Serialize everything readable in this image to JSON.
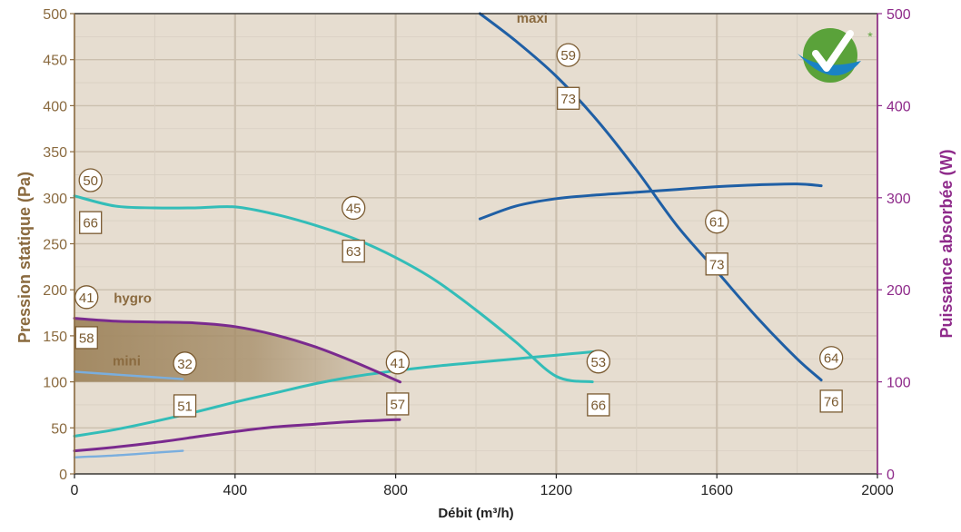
{
  "chart_data": {
    "type": "line",
    "xlabel": "Débit (m³/h)",
    "ylabel_left": "Pression statique (Pa)",
    "ylabel_right": "Puissance absorbée (W)",
    "xlim": [
      0,
      2000
    ],
    "ylim_left": [
      0,
      500
    ],
    "ylim_right": [
      0,
      500
    ],
    "x_ticks": [
      "0",
      "400",
      "800",
      "1200",
      "1600",
      "2000"
    ],
    "y_ticks_left": [
      "0",
      "50",
      "100",
      "150",
      "200",
      "250",
      "300",
      "350",
      "400",
      "450",
      "500"
    ],
    "y_ticks_right": [
      "0",
      "100",
      "200",
      "300",
      "400",
      "500"
    ],
    "grid": true,
    "colors": {
      "background": "#e6ddd0",
      "grid_major": "#cbbfae",
      "grid_minor": "#d8cfc2",
      "maxi": "#1f5fa5",
      "teal": "#33bdb8",
      "hygro": "#7a2a8e",
      "mini": "#7aaede",
      "area_fill": "#a38a64",
      "left_axis": "#8a6a3f",
      "right_axis": "#8e2a8a",
      "badge_green": "#5aa23a",
      "badge_blue": "#1a83c4"
    },
    "series": [
      {
        "name": "maxi",
        "axis": "left",
        "color": "#1f5fa5",
        "x": [
          1010,
          1100,
          1200,
          1300,
          1400,
          1500,
          1600,
          1700,
          1800,
          1860
        ],
        "y": [
          500,
          470,
          432,
          385,
          330,
          270,
          220,
          170,
          125,
          102
        ]
      },
      {
        "axis": "right",
        "color": "#1f5fa5",
        "x": [
          1010,
          1100,
          1200,
          1300,
          1400,
          1500,
          1600,
          1700,
          1800,
          1860
        ],
        "y": [
          277,
          291,
          299,
          303,
          306,
          309,
          312,
          314,
          315,
          313
        ]
      },
      {
        "axis": "left",
        "color": "#33bdb8",
        "x": [
          0,
          100,
          200,
          300,
          400,
          500,
          600,
          700,
          800,
          900,
          1000,
          1100,
          1200,
          1290
        ],
        "y": [
          302,
          291,
          289,
          289,
          290,
          282,
          270,
          255,
          235,
          210,
          178,
          143,
          106,
          100
        ]
      },
      {
        "axis": "right",
        "color": "#33bdb8",
        "x": [
          0,
          100,
          200,
          300,
          400,
          500,
          600,
          700,
          800,
          900,
          1000,
          1100,
          1200,
          1300
        ],
        "y": [
          41,
          48,
          57,
          67,
          78,
          88,
          98,
          106,
          112,
          117,
          121,
          125,
          129,
          133
        ]
      },
      {
        "name": "hygro",
        "axis": "left",
        "color": "#7a2a8e",
        "x": [
          0,
          100,
          200,
          300,
          400,
          500,
          600,
          700,
          800,
          810
        ],
        "y": [
          169,
          166,
          165,
          164,
          160,
          151,
          138,
          121,
          102,
          100
        ]
      },
      {
        "axis": "right",
        "color": "#7a2a8e",
        "x": [
          0,
          100,
          200,
          300,
          400,
          500,
          600,
          700,
          810
        ],
        "y": [
          25,
          29,
          34,
          40,
          46,
          51,
          54,
          57,
          59
        ]
      },
      {
        "name": "mini",
        "axis": "left",
        "color": "#7aaede",
        "x": [
          0,
          100,
          200,
          270
        ],
        "y": [
          111,
          108,
          105,
          103
        ]
      },
      {
        "axis": "right",
        "color": "#7aaede",
        "x": [
          0,
          100,
          200,
          270
        ],
        "y": [
          18,
          20,
          23,
          25
        ]
      }
    ],
    "curve_labels": [
      {
        "text": "maxi",
        "x": 1140,
        "y": 490
      },
      {
        "text": "hygro",
        "x": 145,
        "y": 186
      },
      {
        "text": "mini",
        "x": 130,
        "y": 118
      }
    ],
    "annotations": [
      {
        "shape": "circle",
        "text": "59",
        "x": 1230,
        "y": 455
      },
      {
        "shape": "square",
        "text": "73",
        "x": 1230,
        "y": 408
      },
      {
        "shape": "circle",
        "text": "50",
        "x": 40,
        "y": 319
      },
      {
        "shape": "square",
        "text": "66",
        "x": 40,
        "y": 273
      },
      {
        "shape": "circle",
        "text": "45",
        "x": 695,
        "y": 289
      },
      {
        "shape": "square",
        "text": "63",
        "x": 695,
        "y": 242
      },
      {
        "shape": "circle",
        "text": "61",
        "x": 1600,
        "y": 274
      },
      {
        "shape": "square",
        "text": "73",
        "x": 1600,
        "y": 228
      },
      {
        "shape": "circle",
        "text": "41",
        "x": 30,
        "y": 192
      },
      {
        "shape": "square",
        "text": "58",
        "x": 30,
        "y": 148
      },
      {
        "shape": "circle",
        "text": "32",
        "x": 275,
        "y": 120
      },
      {
        "shape": "square",
        "text": "51",
        "x": 275,
        "y": 74
      },
      {
        "shape": "circle",
        "text": "41",
        "x": 805,
        "y": 121
      },
      {
        "shape": "square",
        "text": "57",
        "x": 805,
        "y": 76
      },
      {
        "shape": "circle",
        "text": "53",
        "x": 1305,
        "y": 122
      },
      {
        "shape": "square",
        "text": "66",
        "x": 1305,
        "y": 75
      },
      {
        "shape": "circle",
        "text": "64",
        "x": 1885,
        "y": 126
      },
      {
        "shape": "square",
        "text": "76",
        "x": 1885,
        "y": 79
      }
    ],
    "badge": {
      "icon": "checkmark-badge-icon",
      "mark": "*"
    }
  }
}
